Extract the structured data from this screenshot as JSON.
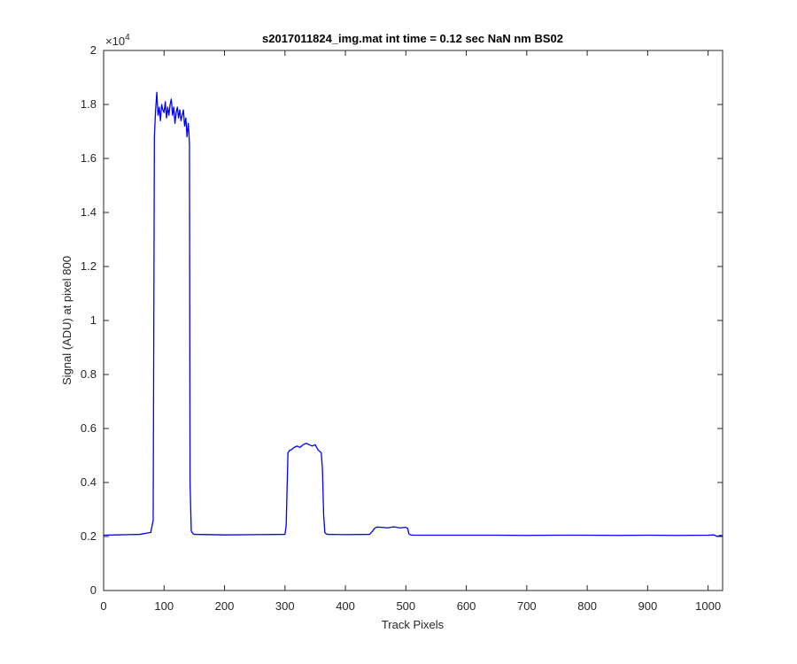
{
  "chart_data": {
    "type": "line",
    "title": "s2017011824_img.mat int time = 0.12 sec  NaN nm BS02",
    "xlabel": "Track Pixels",
    "ylabel": "Signal (ADU) at pixel 800",
    "xlim": [
      0,
      1024
    ],
    "ylim": [
      0,
      20000
    ],
    "x_ticks": [
      0,
      100,
      200,
      300,
      400,
      500,
      600,
      700,
      800,
      900,
      1000
    ],
    "y_ticks": [
      0,
      2000,
      4000,
      6000,
      8000,
      10000,
      12000,
      14000,
      16000,
      18000,
      20000
    ],
    "y_tick_labels": [
      "0",
      "0.2",
      "0.4",
      "0.6",
      "0.8",
      "1",
      "1.2",
      "1.4",
      "1.6",
      "1.8",
      "2"
    ],
    "y_exponent_label": "×10",
    "y_exponent_power": "4",
    "grid": false,
    "series": [
      {
        "color": "#0000ff",
        "x": [
          0,
          20,
          40,
          60,
          78,
          82,
          84,
          86,
          88,
          90,
          92,
          94,
          96,
          98,
          100,
          102,
          104,
          106,
          108,
          110,
          112,
          114,
          116,
          118,
          120,
          122,
          124,
          126,
          128,
          130,
          132,
          134,
          136,
          138,
          140,
          141,
          142,
          143,
          145,
          148,
          150,
          200,
          250,
          300,
          302,
          305,
          308,
          310,
          315,
          320,
          325,
          330,
          335,
          340,
          345,
          350,
          355,
          360,
          362,
          364,
          366,
          368,
          370,
          400,
          440,
          445,
          448,
          452,
          460,
          470,
          480,
          490,
          500,
          503,
          505,
          507,
          510,
          550,
          600,
          650,
          700,
          750,
          800,
          850,
          900,
          950,
          1000,
          1010,
          1015,
          1020,
          1024
        ],
        "y": [
          2050,
          2060,
          2070,
          2080,
          2150,
          2600,
          16800,
          17800,
          18450,
          17600,
          17900,
          17400,
          18000,
          17800,
          17700,
          18100,
          17500,
          17900,
          17600,
          18000,
          18200,
          17600,
          17900,
          17300,
          17700,
          17900,
          17500,
          17800,
          17400,
          17600,
          17800,
          17200,
          17500,
          16800,
          17300,
          17000,
          16500,
          4000,
          2200,
          2100,
          2080,
          2060,
          2070,
          2080,
          2400,
          5100,
          5200,
          5200,
          5300,
          5350,
          5300,
          5400,
          5450,
          5400,
          5350,
          5400,
          5200,
          5100,
          4500,
          2800,
          2150,
          2100,
          2080,
          2070,
          2080,
          2200,
          2300,
          2350,
          2340,
          2320,
          2360,
          2320,
          2340,
          2300,
          2100,
          2070,
          2050,
          2050,
          2050,
          2050,
          2040,
          2050,
          2050,
          2040,
          2050,
          2040,
          2050,
          2060,
          2000,
          2040,
          2030
        ]
      }
    ]
  }
}
